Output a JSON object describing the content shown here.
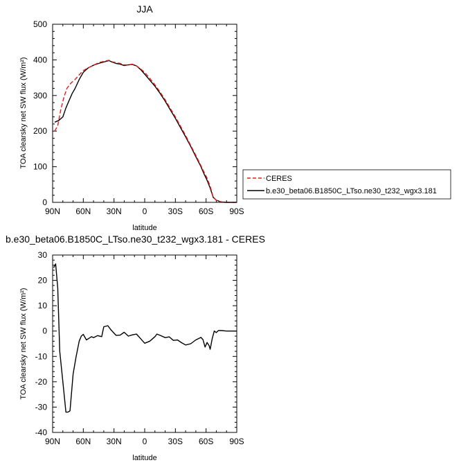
{
  "chart_data": [
    {
      "type": "line",
      "title": "JJA",
      "xlabel": "latitude",
      "ylabel": "TOA clearsky net SW flux (W/m²)",
      "xticks": [
        {
          "lat": 90,
          "label": "90N"
        },
        {
          "lat": 60,
          "label": "60N"
        },
        {
          "lat": 30,
          "label": "30N"
        },
        {
          "lat": 0,
          "label": "0"
        },
        {
          "lat": -30,
          "label": "30S"
        },
        {
          "lat": -60,
          "label": "60S"
        },
        {
          "lat": -90,
          "label": "90S"
        }
      ],
      "yticks": [
        {
          "v": 0,
          "label": "0"
        },
        {
          "v": 100,
          "label": "100"
        },
        {
          "v": 200,
          "label": "200"
        },
        {
          "v": 300,
          "label": "300"
        },
        {
          "v": 400,
          "label": "400"
        },
        {
          "v": 500,
          "label": "500"
        }
      ],
      "xlim": [
        90,
        -90
      ],
      "ylim": [
        0,
        500
      ],
      "legend_placement": "right",
      "series": [
        {
          "name": "CERES",
          "color": "#e8191a",
          "dash": "dashed",
          "x": [
            88,
            85,
            82,
            79,
            76,
            72,
            68,
            64,
            60,
            55,
            50,
            45,
            40,
            35,
            32,
            28,
            24,
            20,
            16,
            12,
            8,
            4,
            0,
            -5,
            -10,
            -15,
            -20,
            -25,
            -30,
            -35,
            -40,
            -45,
            -50,
            -55,
            -58,
            -61,
            -64,
            -67,
            -70,
            -75,
            -80,
            -85,
            -90
          ],
          "y": [
            200,
            215,
            260,
            295,
            320,
            335,
            345,
            358,
            370,
            378,
            385,
            392,
            396,
            399,
            395,
            392,
            390,
            386,
            386,
            388,
            383,
            375,
            365,
            348,
            330,
            310,
            288,
            264,
            240,
            214,
            188,
            160,
            132,
            103,
            85,
            68,
            45,
            15,
            6,
            1,
            0,
            0,
            0
          ]
        },
        {
          "name": "b.e30_beta06.B1850C_LTso.ne30_t232_wgx3.181",
          "color": "#000000",
          "dash": "solid",
          "x": [
            88,
            84,
            80,
            77,
            74,
            71,
            68,
            64,
            60,
            55,
            50,
            45,
            40,
            35,
            32,
            28,
            24,
            20,
            16,
            12,
            8,
            4,
            0,
            -5,
            -10,
            -15,
            -20,
            -25,
            -30,
            -35,
            -40,
            -45,
            -50,
            -55,
            -58,
            -61,
            -64,
            -67,
            -70,
            -75,
            -80,
            -85,
            -90
          ],
          "y": [
            225,
            230,
            240,
            265,
            285,
            305,
            320,
            345,
            365,
            378,
            385,
            390,
            394,
            398,
            394,
            390,
            388,
            384,
            386,
            387,
            383,
            373,
            360,
            343,
            326,
            306,
            284,
            260,
            236,
            210,
            184,
            157,
            128,
            100,
            80,
            62,
            40,
            14,
            6,
            1,
            0,
            0,
            0
          ]
        }
      ]
    },
    {
      "type": "line",
      "title": "b.e30_beta06.B1850C_LTso.ne30_t232_wgx3.181 - CERES",
      "xlabel": "latitude",
      "ylabel": "TOA clearsky net SW flux (W/m²)",
      "xticks": [
        {
          "lat": 90,
          "label": "90N"
        },
        {
          "lat": 60,
          "label": "60N"
        },
        {
          "lat": 30,
          "label": "30N"
        },
        {
          "lat": 0,
          "label": "0"
        },
        {
          "lat": -30,
          "label": "30S"
        },
        {
          "lat": -60,
          "label": "60S"
        },
        {
          "lat": -90,
          "label": "90S"
        }
      ],
      "yticks": [
        {
          "v": -40,
          "label": "-40"
        },
        {
          "v": -30,
          "label": "-30"
        },
        {
          "v": -20,
          "label": "-20"
        },
        {
          "v": -10,
          "label": "-10"
        },
        {
          "v": 0,
          "label": "0"
        },
        {
          "v": 10,
          "label": "10"
        },
        {
          "v": 20,
          "label": "20"
        },
        {
          "v": 30,
          "label": "30"
        }
      ],
      "xlim": [
        90,
        -90
      ],
      "ylim": [
        -40,
        30
      ],
      "series": [
        {
          "color": "#000000",
          "dash": "solid",
          "x": [
            89,
            87,
            85,
            83,
            80,
            77,
            75,
            73,
            70,
            67,
            64,
            62,
            60,
            57,
            55,
            52,
            50,
            46,
            42,
            40,
            36,
            33,
            28,
            24,
            20,
            16,
            12,
            8,
            4,
            0,
            -5,
            -10,
            -12,
            -15,
            -20,
            -24,
            -28,
            -32,
            -36,
            -40,
            -45,
            -50,
            -55,
            -57,
            -59,
            -61,
            -63,
            -64,
            -66,
            -68,
            -70,
            -72,
            -75,
            -80,
            -85,
            -90
          ],
          "y": [
            25,
            26.5,
            17,
            -8,
            -20,
            -32,
            -32,
            -31.5,
            -17,
            -10,
            -4,
            -2,
            -1.3,
            -3.5,
            -3,
            -2.2,
            -2.6,
            -1.8,
            -2.2,
            1.7,
            2.1,
            0.5,
            -1.7,
            -1.6,
            -0.5,
            -2,
            -1.5,
            -1.2,
            -3,
            -4.8,
            -4,
            -2.2,
            -1.2,
            -1.7,
            -2.6,
            -2.3,
            -3.7,
            -3.5,
            -4.6,
            -5.5,
            -5,
            -3.5,
            -2.5,
            -3.4,
            -6.3,
            -4.5,
            -5.8,
            -7.2,
            -3,
            0,
            -0.6,
            0.2,
            0.2,
            0,
            0,
            0
          ]
        }
      ]
    }
  ]
}
